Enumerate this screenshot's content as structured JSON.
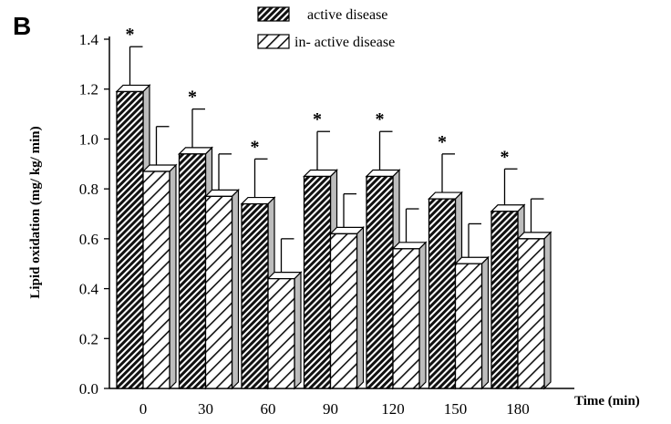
{
  "panel_label": "B",
  "chart_data": {
    "type": "bar",
    "categories": [
      "0",
      "30",
      "60",
      "90",
      "120",
      "150",
      "180"
    ],
    "series": [
      {
        "name": "active disease",
        "values": [
          1.19,
          0.94,
          0.74,
          0.85,
          0.85,
          0.76,
          0.71
        ],
        "errors": [
          0.18,
          0.18,
          0.18,
          0.18,
          0.18,
          0.18,
          0.17
        ],
        "pattern": "dense-diagonal-hatch",
        "significant": [
          true,
          true,
          true,
          true,
          true,
          true,
          true
        ]
      },
      {
        "name": "in- active disease",
        "values": [
          0.87,
          0.77,
          0.44,
          0.62,
          0.56,
          0.5,
          0.6
        ],
        "errors": [
          0.18,
          0.17,
          0.16,
          0.16,
          0.16,
          0.16,
          0.16
        ],
        "pattern": "sparse-diagonal-hatch"
      }
    ],
    "ylabel": "Lipid oxidation (mg/ kg/ min)",
    "xlabel": "Time (min)",
    "ylim": [
      0,
      1.4
    ],
    "yticks": [
      "0.0",
      "0.2",
      "0.4",
      "0.6",
      "0.8",
      "1.0",
      "1.2",
      "1.4"
    ],
    "significance_marker": "*",
    "legend_position": "top-center",
    "grid": false,
    "style": "3d-bars"
  }
}
